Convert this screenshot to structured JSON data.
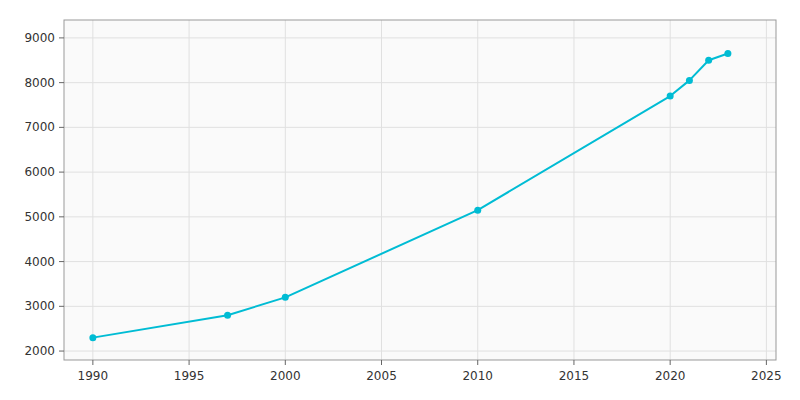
{
  "chart_data": {
    "type": "line",
    "x": [
      1990,
      1997,
      2000,
      2010,
      2020,
      2021,
      2022,
      2023
    ],
    "values": [
      2300,
      2800,
      3200,
      5150,
      7700,
      8050,
      8500,
      8650
    ],
    "color": "#00BCD4",
    "marker": "circle",
    "xlim": [
      1988.5,
      2025.5
    ],
    "ylim": [
      1800,
      9400
    ],
    "xticks": [
      1990,
      1995,
      2000,
      2005,
      2010,
      2015,
      2020,
      2025
    ],
    "yticks": [
      2000,
      3000,
      4000,
      5000,
      6000,
      7000,
      8000,
      9000
    ],
    "grid": true
  }
}
